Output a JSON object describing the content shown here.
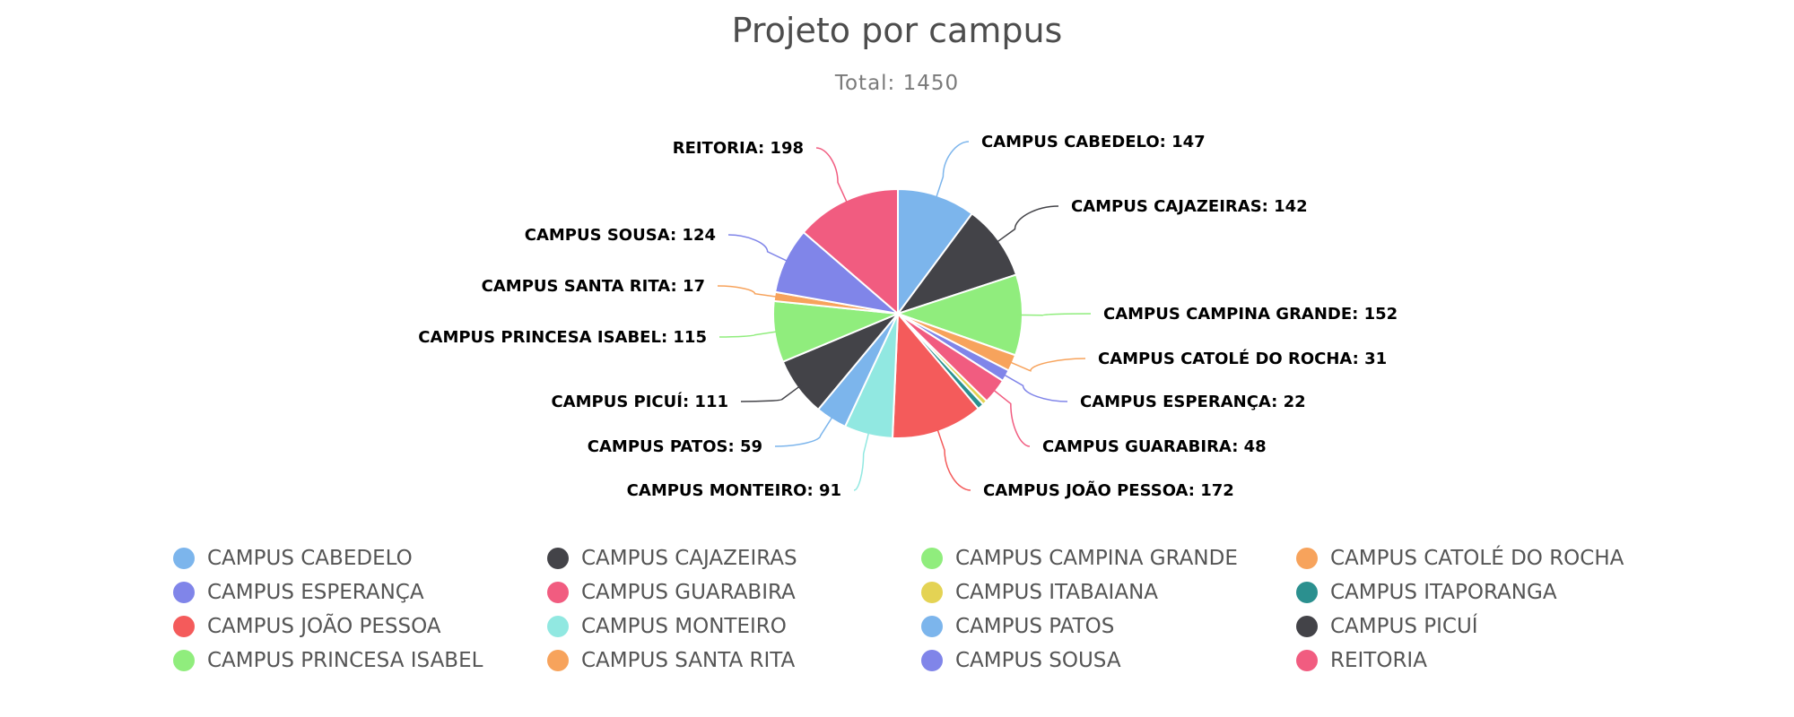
{
  "header": {
    "title": "Projeto por campus",
    "subtitle": "Total: 1450"
  },
  "colors": [
    "#7cb5ec",
    "#434348",
    "#90ed7d",
    "#f7a35c",
    "#8085e9",
    "#f15c80",
    "#e4d354",
    "#2b908f",
    "#f45b5b",
    "#91e8e1"
  ],
  "chart_data": {
    "type": "pie",
    "title": "Projeto por campus",
    "subtitle": "Total: 1450",
    "total": 1450,
    "categories": [
      "CAMPUS CABEDELO",
      "CAMPUS CAJAZEIRAS",
      "CAMPUS CAMPINA GRANDE",
      "CAMPUS CATOLÉ DO ROCHA",
      "CAMPUS ESPERANÇA",
      "CAMPUS GUARABIRA",
      "CAMPUS ITABAIANA",
      "CAMPUS ITAPORANGA",
      "CAMPUS JOÃO PESSOA",
      "CAMPUS MONTEIRO",
      "CAMPUS PATOS",
      "CAMPUS PICUÍ",
      "CAMPUS PRINCESA ISABEL",
      "CAMPUS SANTA RITA",
      "CAMPUS SOUSA",
      "REITORIA"
    ],
    "values": [
      147,
      142,
      152,
      31,
      22,
      48,
      9,
      12,
      172,
      91,
      59,
      111,
      115,
      17,
      124,
      198
    ],
    "data_labels": [
      "CAMPUS CABEDELO: 147",
      "CAMPUS CAJAZEIRAS: 142",
      "CAMPUS CAMPINA GRANDE: 152",
      "CAMPUS CATOLÉ DO ROCHA: 31",
      "CAMPUS ESPERANÇA: 22",
      "CAMPUS GUARABIRA: 48",
      "",
      "",
      "CAMPUS JOÃO PESSOA: 172",
      "CAMPUS MONTEIRO: 91",
      "CAMPUS PATOS: 59",
      "CAMPUS PICUÍ: 111",
      "CAMPUS PRINCESA ISABEL: 115",
      "CAMPUS SANTA RITA: 17",
      "CAMPUS SOUSA: 124",
      "REITORIA: 198"
    ],
    "legend_position": "bottom",
    "legend_columns": 4
  },
  "legend": {
    "items": [
      {
        "label": "CAMPUS CABEDELO",
        "color": "#7cb5ec"
      },
      {
        "label": "CAMPUS CAJAZEIRAS",
        "color": "#434348"
      },
      {
        "label": "CAMPUS CAMPINA GRANDE",
        "color": "#90ed7d"
      },
      {
        "label": "CAMPUS CATOLÉ DO ROCHA",
        "color": "#f7a35c"
      },
      {
        "label": "CAMPUS ESPERANÇA",
        "color": "#8085e9"
      },
      {
        "label": "CAMPUS GUARABIRA",
        "color": "#f15c80"
      },
      {
        "label": "CAMPUS ITABAIANA",
        "color": "#e4d354"
      },
      {
        "label": "CAMPUS ITAPORANGA",
        "color": "#2b908f"
      },
      {
        "label": "CAMPUS JOÃO PESSOA",
        "color": "#f45b5b"
      },
      {
        "label": "CAMPUS MONTEIRO",
        "color": "#91e8e1"
      },
      {
        "label": "CAMPUS PATOS",
        "color": "#7cb5ec"
      },
      {
        "label": "CAMPUS PICUÍ",
        "color": "#434348"
      },
      {
        "label": "CAMPUS PRINCESA ISABEL",
        "color": "#90ed7d"
      },
      {
        "label": "CAMPUS SANTA RITA",
        "color": "#f7a35c"
      },
      {
        "label": "CAMPUS SOUSA",
        "color": "#8085e9"
      },
      {
        "label": "REITORIA",
        "color": "#f15c80"
      }
    ]
  }
}
